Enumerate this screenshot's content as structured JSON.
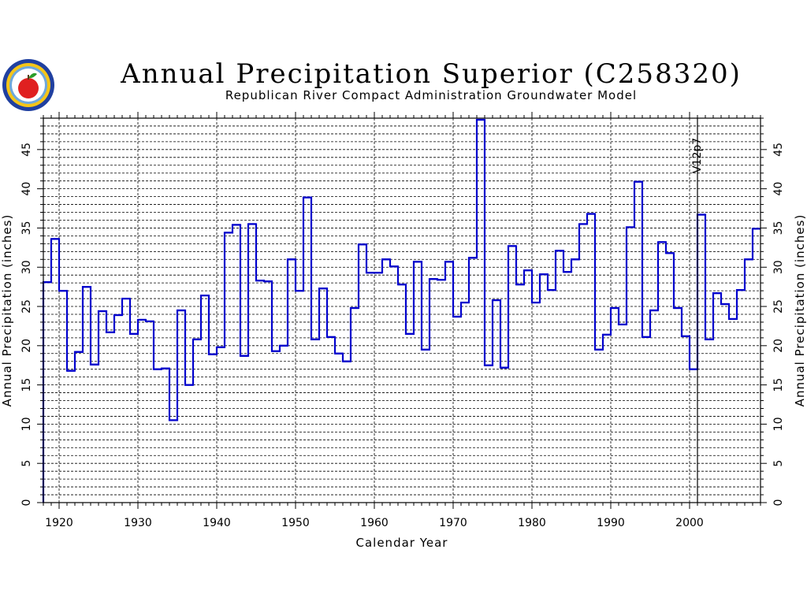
{
  "header": {
    "title": "Annual Precipitation Superior (C258320)",
    "subtitle": "Republican River Compact Administration Groundwater Model"
  },
  "logo": {
    "icon": "apple-seal-icon",
    "colors": {
      "ring": "#2040a0",
      "fill": "#f5c518",
      "apple": "#e02020",
      "leaf": "#2a9d2a"
    }
  },
  "chart_data": {
    "type": "step",
    "title": "Annual Precipitation Superior (C258320)",
    "subtitle": "Republican River Compact Administration Groundwater Model",
    "xlabel": "Calendar Year",
    "ylabel": "Annual Precipitation (inches)",
    "xlim": [
      1918,
      2009
    ],
    "ylim": [
      0,
      49
    ],
    "x_ticks": [
      1920,
      1930,
      1940,
      1950,
      1960,
      1970,
      1980,
      1990,
      2000
    ],
    "y_ticks": [
      0,
      5,
      10,
      15,
      20,
      25,
      30,
      35,
      40,
      45
    ],
    "grid": true,
    "line_color": "#0000cc",
    "annotation": {
      "x": 2001,
      "label": "V12p7"
    },
    "series": [
      {
        "years": [
          1918,
          1919,
          1920,
          1921,
          1922,
          1923,
          1924,
          1925,
          1926,
          1927,
          1928,
          1929,
          1930,
          1931,
          1932,
          1933,
          1934,
          1935,
          1936,
          1937,
          1938,
          1939,
          1940,
          1941,
          1942,
          1943,
          1944,
          1945,
          1946,
          1947,
          1948,
          1949,
          1950,
          1951,
          1952,
          1953,
          1954,
          1955,
          1956,
          1957,
          1958,
          1959,
          1960,
          1961,
          1962,
          1963,
          1964,
          1965,
          1966,
          1967,
          1968,
          1969,
          1970,
          1971,
          1972,
          1973,
          1974,
          1975,
          1976,
          1977,
          1978,
          1979,
          1980,
          1981,
          1982,
          1983,
          1984,
          1985,
          1986,
          1987,
          1988,
          1989,
          1990,
          1991,
          1992,
          1993,
          1994,
          1995,
          1996,
          1997,
          1998,
          1999,
          2000,
          2001,
          2002,
          2003,
          2004,
          2005,
          2006,
          2007,
          2008
        ],
        "values": [
          28.1,
          33.6,
          27.0,
          16.8,
          19.2,
          27.5,
          17.6,
          24.4,
          21.7,
          23.9,
          26.0,
          21.5,
          23.3,
          23.1,
          17.0,
          17.1,
          10.5,
          24.5,
          15.0,
          20.8,
          26.4,
          18.9,
          19.8,
          34.4,
          35.4,
          18.7,
          35.5,
          28.3,
          28.2,
          19.3,
          20.0,
          31.0,
          27.0,
          38.9,
          20.8,
          27.3,
          21.1,
          19.0,
          18.0,
          24.8,
          32.9,
          29.3,
          29.3,
          31.0,
          30.1,
          27.8,
          21.5,
          30.7,
          19.5,
          28.5,
          28.4,
          30.7,
          23.7,
          25.5,
          31.2,
          48.8,
          17.5,
          25.8,
          17.2,
          32.7,
          27.8,
          29.6,
          25.5,
          29.1,
          27.1,
          32.1,
          29.4,
          31.0,
          35.5,
          36.8,
          19.5,
          21.4,
          24.8,
          22.7,
          35.1,
          40.9,
          21.1,
          24.5,
          33.2,
          31.8,
          24.8,
          21.2,
          17.0,
          36.7,
          20.8,
          26.7,
          25.3,
          23.4,
          27.1,
          31.0,
          34.9
        ]
      }
    ]
  }
}
